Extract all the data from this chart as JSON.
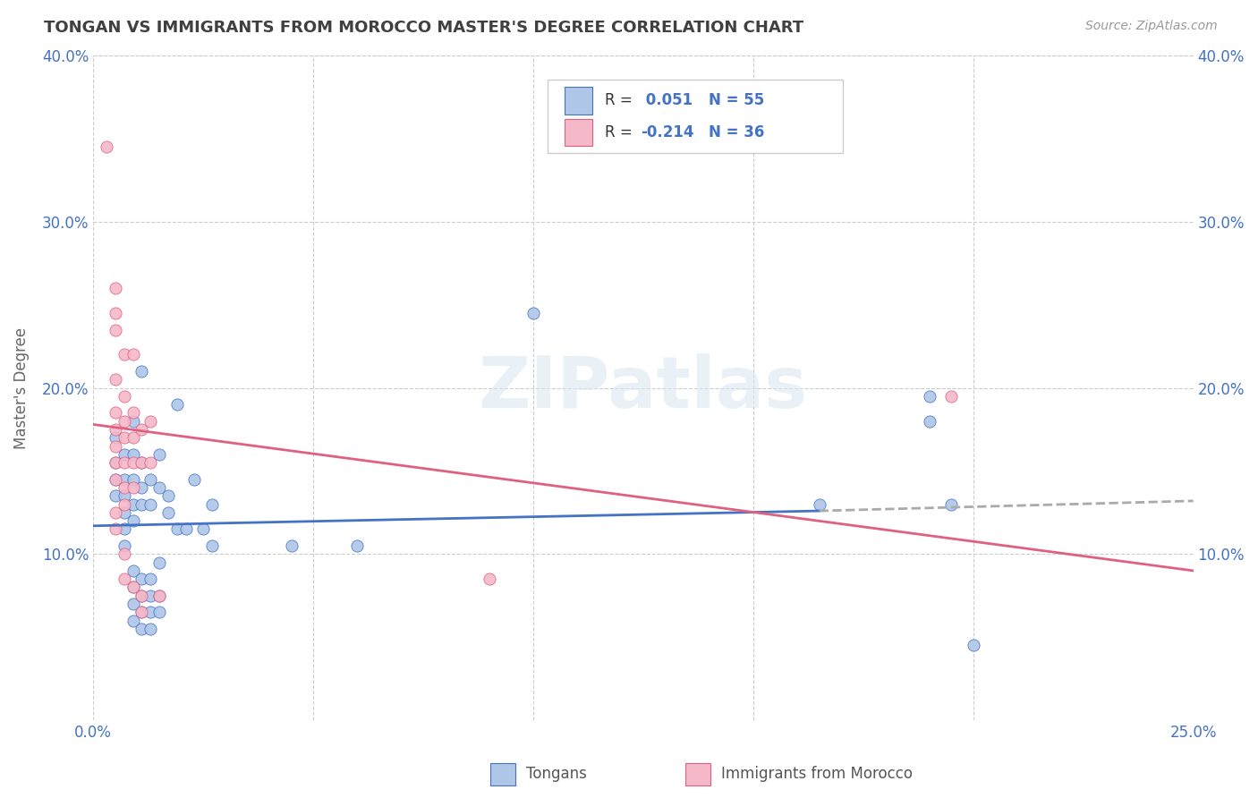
{
  "title": "TONGAN VS IMMIGRANTS FROM MOROCCO MASTER'S DEGREE CORRELATION CHART",
  "source": "Source: ZipAtlas.com",
  "ylabel": "Master's Degree",
  "watermark": "ZIPatlas",
  "legend_label1": "Tongans",
  "legend_label2": "Immigrants from Morocco",
  "legend_R1_prefix": "R = ",
  "legend_R1_val": " 0.051",
  "legend_N1": "N = 55",
  "legend_R2_prefix": "R = ",
  "legend_R2_val": "-0.214",
  "legend_N2": "N = 36",
  "xlim": [
    0.0,
    0.25
  ],
  "ylim": [
    0.0,
    0.4
  ],
  "yticks": [
    0.1,
    0.2,
    0.3,
    0.4
  ],
  "ytick_labels": [
    "10.0%",
    "20.0%",
    "30.0%",
    "40.0%"
  ],
  "xticks": [
    0.0,
    0.05,
    0.1,
    0.15,
    0.2,
    0.25
  ],
  "xtick_labels": [
    "0.0%",
    "",
    "",
    "",
    "",
    "25.0%"
  ],
  "color_blue": "#aec6e8",
  "color_pink": "#f5b8c8",
  "line_blue": "#4472c4",
  "line_pink": "#e06080",
  "line_gray_dashed": "#aaaaaa",
  "grid_color": "#cccccc",
  "title_color": "#404040",
  "axis_color": "#4472c4",
  "text_dark": "#333333",
  "blue_scatter": [
    [
      0.005,
      0.17
    ],
    [
      0.005,
      0.155
    ],
    [
      0.005,
      0.145
    ],
    [
      0.005,
      0.135
    ],
    [
      0.007,
      0.16
    ],
    [
      0.007,
      0.145
    ],
    [
      0.007,
      0.135
    ],
    [
      0.007,
      0.125
    ],
    [
      0.007,
      0.115
    ],
    [
      0.007,
      0.105
    ],
    [
      0.009,
      0.18
    ],
    [
      0.009,
      0.16
    ],
    [
      0.009,
      0.145
    ],
    [
      0.009,
      0.13
    ],
    [
      0.009,
      0.12
    ],
    [
      0.009,
      0.09
    ],
    [
      0.009,
      0.08
    ],
    [
      0.009,
      0.07
    ],
    [
      0.009,
      0.06
    ],
    [
      0.011,
      0.21
    ],
    [
      0.011,
      0.155
    ],
    [
      0.011,
      0.14
    ],
    [
      0.011,
      0.13
    ],
    [
      0.011,
      0.085
    ],
    [
      0.011,
      0.075
    ],
    [
      0.011,
      0.065
    ],
    [
      0.011,
      0.055
    ],
    [
      0.013,
      0.145
    ],
    [
      0.013,
      0.13
    ],
    [
      0.013,
      0.085
    ],
    [
      0.013,
      0.075
    ],
    [
      0.013,
      0.065
    ],
    [
      0.013,
      0.055
    ],
    [
      0.015,
      0.16
    ],
    [
      0.015,
      0.14
    ],
    [
      0.015,
      0.095
    ],
    [
      0.015,
      0.075
    ],
    [
      0.015,
      0.065
    ],
    [
      0.017,
      0.135
    ],
    [
      0.017,
      0.125
    ],
    [
      0.019,
      0.19
    ],
    [
      0.019,
      0.115
    ],
    [
      0.021,
      0.115
    ],
    [
      0.023,
      0.145
    ],
    [
      0.025,
      0.115
    ],
    [
      0.027,
      0.13
    ],
    [
      0.027,
      0.105
    ],
    [
      0.045,
      0.105
    ],
    [
      0.06,
      0.105
    ],
    [
      0.1,
      0.245
    ],
    [
      0.165,
      0.13
    ],
    [
      0.19,
      0.195
    ],
    [
      0.19,
      0.18
    ],
    [
      0.195,
      0.13
    ],
    [
      0.2,
      0.045
    ]
  ],
  "pink_scatter": [
    [
      0.003,
      0.345
    ],
    [
      0.005,
      0.26
    ],
    [
      0.005,
      0.245
    ],
    [
      0.005,
      0.235
    ],
    [
      0.005,
      0.205
    ],
    [
      0.005,
      0.185
    ],
    [
      0.005,
      0.175
    ],
    [
      0.005,
      0.165
    ],
    [
      0.005,
      0.155
    ],
    [
      0.005,
      0.145
    ],
    [
      0.005,
      0.125
    ],
    [
      0.005,
      0.115
    ],
    [
      0.007,
      0.22
    ],
    [
      0.007,
      0.195
    ],
    [
      0.007,
      0.18
    ],
    [
      0.007,
      0.17
    ],
    [
      0.007,
      0.155
    ],
    [
      0.007,
      0.14
    ],
    [
      0.007,
      0.13
    ],
    [
      0.007,
      0.1
    ],
    [
      0.007,
      0.085
    ],
    [
      0.009,
      0.22
    ],
    [
      0.009,
      0.185
    ],
    [
      0.009,
      0.17
    ],
    [
      0.009,
      0.155
    ],
    [
      0.009,
      0.14
    ],
    [
      0.009,
      0.08
    ],
    [
      0.011,
      0.175
    ],
    [
      0.011,
      0.155
    ],
    [
      0.011,
      0.075
    ],
    [
      0.011,
      0.065
    ],
    [
      0.013,
      0.18
    ],
    [
      0.013,
      0.155
    ],
    [
      0.015,
      0.075
    ],
    [
      0.09,
      0.085
    ],
    [
      0.195,
      0.195
    ]
  ],
  "blue_line_solid": [
    [
      0.0,
      0.117
    ],
    [
      0.165,
      0.126
    ]
  ],
  "blue_line_dashed": [
    [
      0.165,
      0.126
    ],
    [
      0.25,
      0.132
    ]
  ],
  "pink_line": [
    [
      0.0,
      0.178
    ],
    [
      0.25,
      0.09
    ]
  ]
}
